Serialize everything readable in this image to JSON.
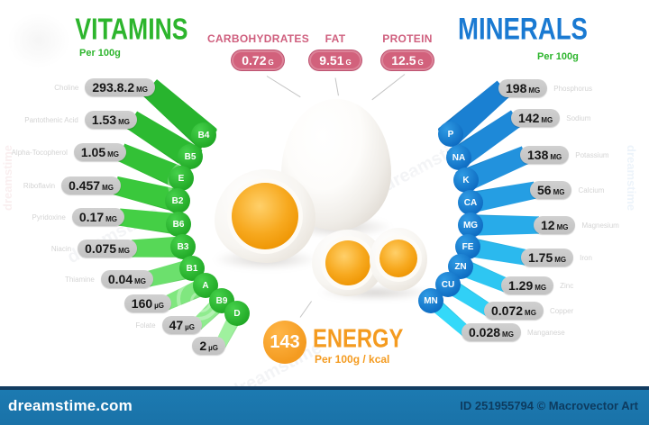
{
  "vitamins_header": {
    "title": "VITAMINS",
    "per": "Per 100g"
  },
  "minerals_header": {
    "title": "MINERALS",
    "per": "Per 100g"
  },
  "macros": {
    "items": [
      {
        "label": "CARBOHYDRATES",
        "value": "0.72",
        "unit": "G"
      },
      {
        "label": "FAT",
        "value": "9.51",
        "unit": "G"
      },
      {
        "label": "PROTEIN",
        "value": "12.5",
        "unit": "G"
      }
    ]
  },
  "energy": {
    "value": "143",
    "label": "ENERGY",
    "per": "Per 100g / kcal"
  },
  "vitamins": [
    {
      "name": "Choline",
      "value": "293.8.2",
      "unit": "MG",
      "symbol": "B4"
    },
    {
      "name": "Pantothenic Acid",
      "value": "1.53",
      "unit": "MG",
      "symbol": "B5"
    },
    {
      "name": "Alpha-Tocopherol",
      "value": "1.05",
      "unit": "MG",
      "symbol": "E"
    },
    {
      "name": "Riboflavin",
      "value": "0.457",
      "unit": "MG",
      "symbol": "B2"
    },
    {
      "name": "Pyridoxine",
      "value": "0.17",
      "unit": "MG",
      "symbol": "B6"
    },
    {
      "name": "Niacin",
      "value": "0.075",
      "unit": "MG",
      "symbol": "B3"
    },
    {
      "name": "Thiamine",
      "value": "0.04",
      "unit": "MG",
      "symbol": "B1"
    },
    {
      "name": "",
      "value": "160",
      "unit": "µG",
      "symbol": "A"
    },
    {
      "name": "Folate",
      "value": "47",
      "unit": "µG",
      "symbol": "B9"
    },
    {
      "name": "",
      "value": "2",
      "unit": "µG",
      "symbol": "D"
    }
  ],
  "minerals": [
    {
      "name": "Phosphorus",
      "value": "198",
      "unit": "MG",
      "symbol": "P"
    },
    {
      "name": "Sodium",
      "value": "142",
      "unit": "MG",
      "symbol": "NA"
    },
    {
      "name": "Potassium",
      "value": "138",
      "unit": "MG",
      "symbol": "K"
    },
    {
      "name": "Calcium",
      "value": "56",
      "unit": "MG",
      "symbol": "CA"
    },
    {
      "name": "Magnesium",
      "value": "12",
      "unit": "MG",
      "symbol": "MG"
    },
    {
      "name": "Iron",
      "value": "1.75",
      "unit": "MG",
      "symbol": "FE"
    },
    {
      "name": "Zinc",
      "value": "1.29",
      "unit": "MG",
      "symbol": "ZN"
    },
    {
      "name": "Copper",
      "value": "0.072",
      "unit": "MG",
      "symbol": "CU"
    },
    {
      "name": "Manganese",
      "value": "0.028",
      "unit": "MG",
      "symbol": "MN"
    }
  ],
  "footer": {
    "brand": "dreamstime.com",
    "credit": "ID 251955794 © Macrovector Art"
  },
  "watermark": {
    "text": "dreamstime"
  },
  "colors": {
    "vitamins_green": "#2db52d",
    "minerals_blue": "#1a7ad2",
    "mineral_cyan": "#2ec9f2",
    "macro_pink": "#d2617c",
    "energy_orange": "#f49b20",
    "pill_gray": "#c6c6c6",
    "footer_blue": "#1b76ad",
    "footer_navy": "#123c61"
  },
  "chart_data": [
    {
      "type": "bar",
      "title": "VITAMINS",
      "subtitle": "Per 100g",
      "layout": "radial fan of bars, green, left side of egg",
      "categories": [
        "Choline",
        "Pantothenic Acid",
        "Alpha-Tocopherol",
        "Riboflavin",
        "Pyridoxine",
        "Niacin",
        "Thiamine",
        "",
        "Folate",
        ""
      ],
      "symbols": [
        "B4",
        "B5",
        "E",
        "B2",
        "B6",
        "B3",
        "B1",
        "A",
        "B9",
        "D"
      ],
      "values_text": [
        "293.8.2 mg",
        "1.53 mg",
        "1.05 mg",
        "0.457 mg",
        "0.17 mg",
        "0.075 mg",
        "0.04 mg",
        "160 µg",
        "47 µg",
        "2 µg"
      ]
    },
    {
      "type": "bar",
      "title": "MINERALS",
      "subtitle": "Per 100g",
      "layout": "radial fan of bars, blue-to-cyan, right side of egg",
      "categories": [
        "Phosphorus",
        "Sodium",
        "Potassium",
        "Calcium",
        "Magnesium",
        "Iron",
        "Zinc",
        "Copper",
        "Manganese"
      ],
      "symbols": [
        "P",
        "NA",
        "K",
        "CA",
        "MG",
        "FE",
        "ZN",
        "CU",
        "MN"
      ],
      "values_text": [
        "198 mg",
        "142 mg",
        "138 mg",
        "56 mg",
        "12 mg",
        "1.75 mg",
        "1.29 mg",
        "0.072 mg",
        "0.028 mg"
      ]
    },
    {
      "type": "table",
      "title": "Macronutrients",
      "categories": [
        "CARBOHYDRATES",
        "FAT",
        "PROTEIN"
      ],
      "values": [
        0.72,
        9.51,
        12.5
      ],
      "unit": "g"
    },
    {
      "type": "table",
      "title": "ENERGY",
      "categories": [
        "Energy"
      ],
      "values": [
        143
      ],
      "unit": "kcal",
      "note": "Per 100g / kcal"
    }
  ]
}
